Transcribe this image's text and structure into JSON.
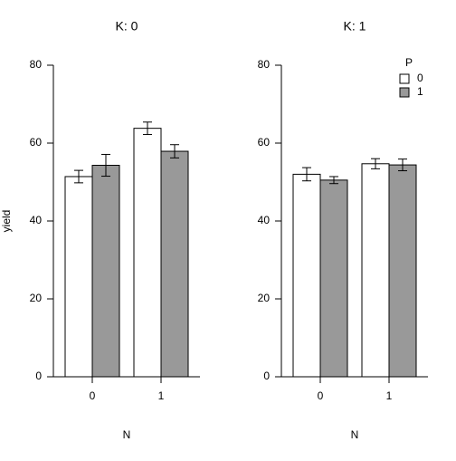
{
  "chart_data": [
    {
      "type": "bar",
      "title": "K: 0",
      "xlabel": "N",
      "ylabel": "yield",
      "categories": [
        "0",
        "1"
      ],
      "series": [
        {
          "color": "#ffffff",
          "values": [
            51.4,
            63.8
          ],
          "errors": [
            1.6,
            1.6
          ]
        },
        {
          "color": "#999999",
          "values": [
            54.3,
            57.9
          ],
          "errors": [
            2.8,
            1.7
          ]
        }
      ],
      "ylim": [
        0,
        80
      ],
      "yticks": [
        0,
        20,
        40,
        60,
        80
      ]
    },
    {
      "type": "bar",
      "title": "K: 1",
      "xlabel": "N",
      "legend_title": "P",
      "categories": [
        "0",
        "1"
      ],
      "series": [
        {
          "name": "0",
          "color": "#ffffff",
          "values": [
            52.0,
            54.7
          ],
          "errors": [
            1.7,
            1.3
          ]
        },
        {
          "name": "1",
          "color": "#999999",
          "values": [
            50.5,
            54.4
          ],
          "errors": [
            0.9,
            1.5
          ]
        }
      ],
      "ylim": [
        0,
        80
      ],
      "yticks": [
        0,
        20,
        40,
        60,
        80
      ]
    }
  ]
}
